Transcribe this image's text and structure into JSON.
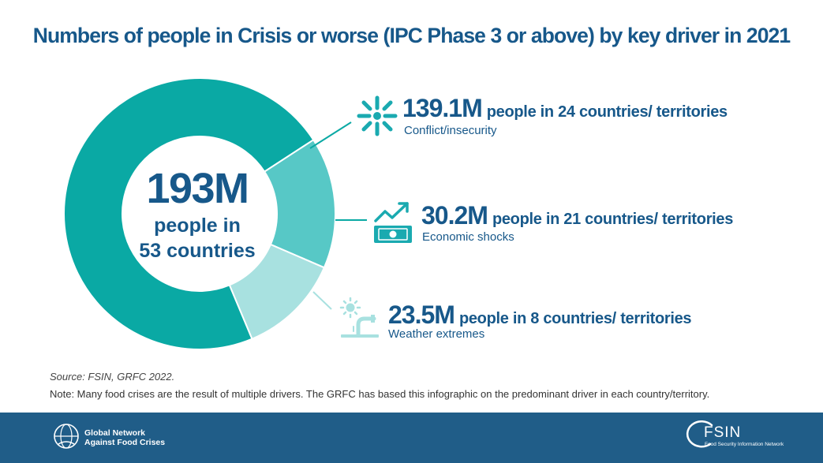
{
  "title": "Numbers of people in Crisis or worse (IPC Phase 3 or above) by key driver in 2021",
  "center": {
    "total": "193M",
    "line1": "people in",
    "line2": "53 countries"
  },
  "colors": {
    "title": "#17588a",
    "conflict": "#0aa9a4",
    "economic": "#57c8c6",
    "weather": "#a8e1e0",
    "footer": "#205d88"
  },
  "chart_data": {
    "type": "pie",
    "title": "Numbers of people in Crisis or worse (IPC Phase 3 or above) by key driver in 2021",
    "total_label": "193M",
    "series": [
      {
        "name": "Conflict/insecurity",
        "values": [
          139.1
        ]
      },
      {
        "name": "Economic shocks",
        "values": [
          30.2
        ]
      },
      {
        "name": "Weather extremes",
        "values": [
          23.5
        ]
      }
    ],
    "units": "million people"
  },
  "items": [
    {
      "value": "139.1M",
      "rest": "people in 24 countries/ territories",
      "sublabel": "Conflict/insecurity",
      "icon": "conflict-burst-icon"
    },
    {
      "value": "30.2M",
      "rest": "people in 21 countries/ territories",
      "sublabel": "Economic shocks",
      "icon": "economic-chart-money-icon"
    },
    {
      "value": "23.5M",
      "rest": "people in 8 countries/ territories",
      "sublabel": "Weather extremes",
      "icon": "weather-sun-tap-icon"
    }
  ],
  "source": "Source: FSIN, GRFC 2022.",
  "note": "Note: Many food crises are the result of multiple drivers. The GRFC has based this infographic on the predominant driver in each country/territory.",
  "footer": {
    "gnafc_line1": "Global Network",
    "gnafc_line2": "Against Food Crises",
    "fsin": "FSIN",
    "fsin_sub": "Food Security Information Network"
  }
}
